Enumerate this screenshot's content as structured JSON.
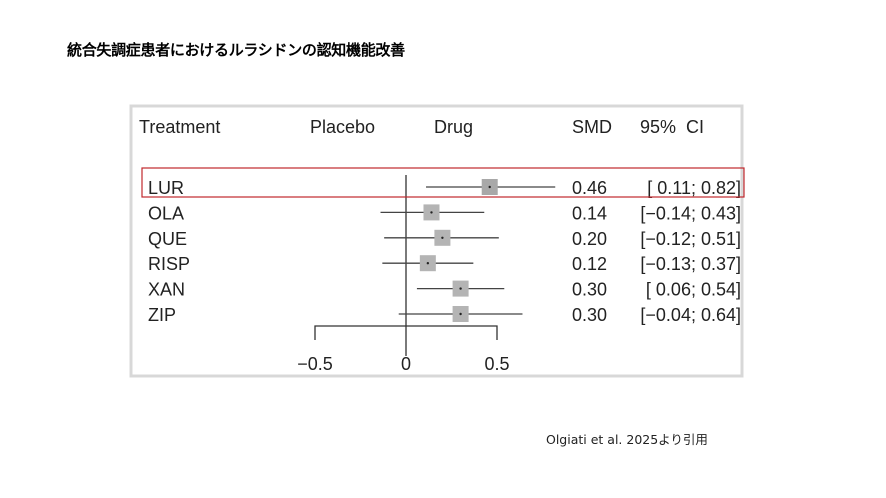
{
  "title": "統合失調症患者におけるルラシドンの認知機能改善",
  "citation": "Olgiati et al. 2025より引用",
  "colors": {
    "highlight_box": "#c0282d",
    "marker": "#aaaaaa",
    "line": "#444444"
  },
  "chart_data": {
    "type": "forest",
    "headers": {
      "treatment": "Treatment",
      "placebo": "Placebo",
      "drug": "Drug",
      "smd": "SMD",
      "ci": "95%  CI"
    },
    "xlim": [
      -0.5,
      0.5
    ],
    "xticks": [
      "−0.5",
      "0",
      "0.5"
    ],
    "xtick_values": [
      -0.5,
      0,
      0.5
    ],
    "highlighted": "LUR",
    "rows": [
      {
        "treatment": "LUR",
        "smd": 0.46,
        "lo": 0.11,
        "hi": 0.82,
        "smd_label": "0.46",
        "ci_label": "[ 0.11; 0.82]"
      },
      {
        "treatment": "OLA",
        "smd": 0.14,
        "lo": -0.14,
        "hi": 0.43,
        "smd_label": "0.14",
        "ci_label": "[−0.14; 0.43]"
      },
      {
        "treatment": "QUE",
        "smd": 0.2,
        "lo": -0.12,
        "hi": 0.51,
        "smd_label": "0.20",
        "ci_label": "[−0.12; 0.51]"
      },
      {
        "treatment": "RISP",
        "smd": 0.12,
        "lo": -0.13,
        "hi": 0.37,
        "smd_label": "0.12",
        "ci_label": "[−0.13; 0.37]"
      },
      {
        "treatment": "XAN",
        "smd": 0.3,
        "lo": 0.06,
        "hi": 0.54,
        "smd_label": "0.30",
        "ci_label": "[ 0.06; 0.54]"
      },
      {
        "treatment": "ZIP",
        "smd": 0.3,
        "lo": -0.04,
        "hi": 0.64,
        "smd_label": "0.30",
        "ci_label": "[−0.04; 0.64]"
      }
    ]
  }
}
